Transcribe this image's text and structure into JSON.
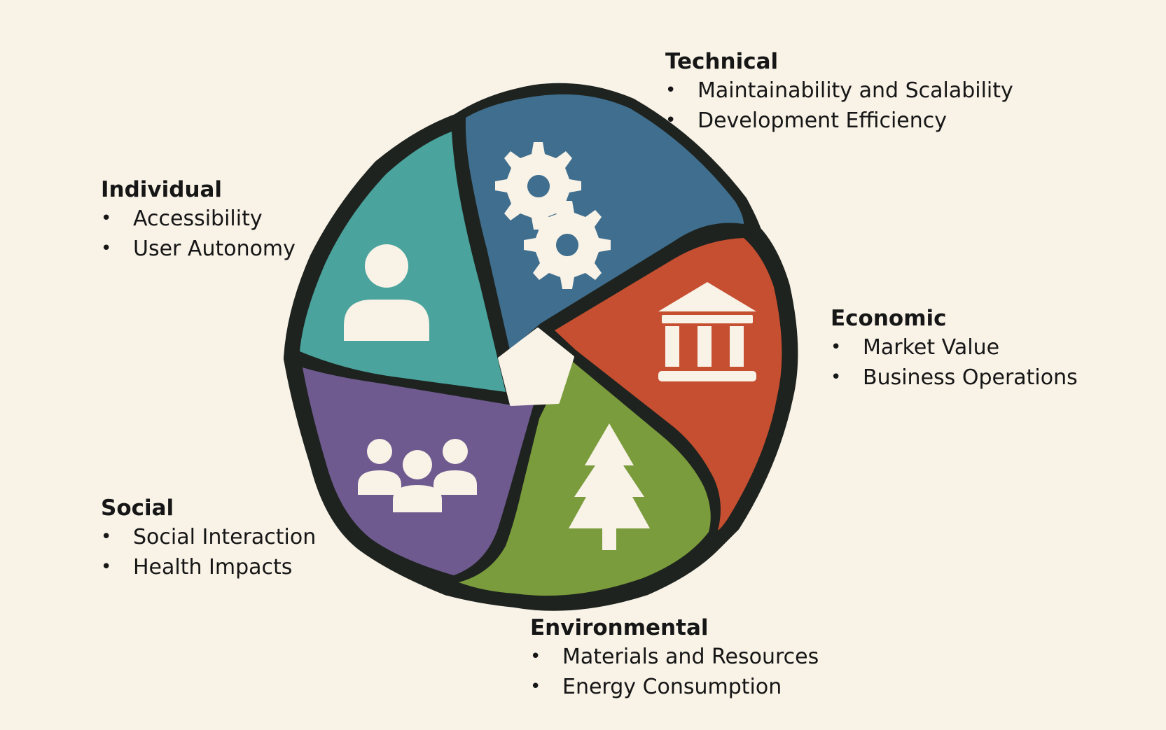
{
  "dimensions": [
    {
      "id": "technical",
      "title": "Technical",
      "items": [
        "Maintainability and Scalability",
        "Development Efficiency"
      ],
      "color": "#3f6e8e",
      "icon": "gears-icon"
    },
    {
      "id": "economic",
      "title": "Economic",
      "items": [
        "Market Value",
        "Business Operations"
      ],
      "color": "#c54f30",
      "icon": "bank-building-icon"
    },
    {
      "id": "environmental",
      "title": "Environmental",
      "items": [
        "Materials and Resources",
        "Energy Consumption"
      ],
      "color": "#7a9c3c",
      "icon": "pine-tree-icon"
    },
    {
      "id": "social",
      "title": "Social",
      "items": [
        "Social Interaction",
        "Health Impacts"
      ],
      "color": "#6e5a8e",
      "icon": "group-people-icon"
    },
    {
      "id": "individual",
      "title": "Individual",
      "items": [
        "Accessibility",
        "User Autonomy"
      ],
      "color": "#4aa39c",
      "icon": "person-icon"
    }
  ],
  "colors": {
    "background": "#f8f2e7",
    "outline": "#1e231f",
    "icon_fill": "#f8f2e7",
    "center": "#f8f2e7"
  }
}
